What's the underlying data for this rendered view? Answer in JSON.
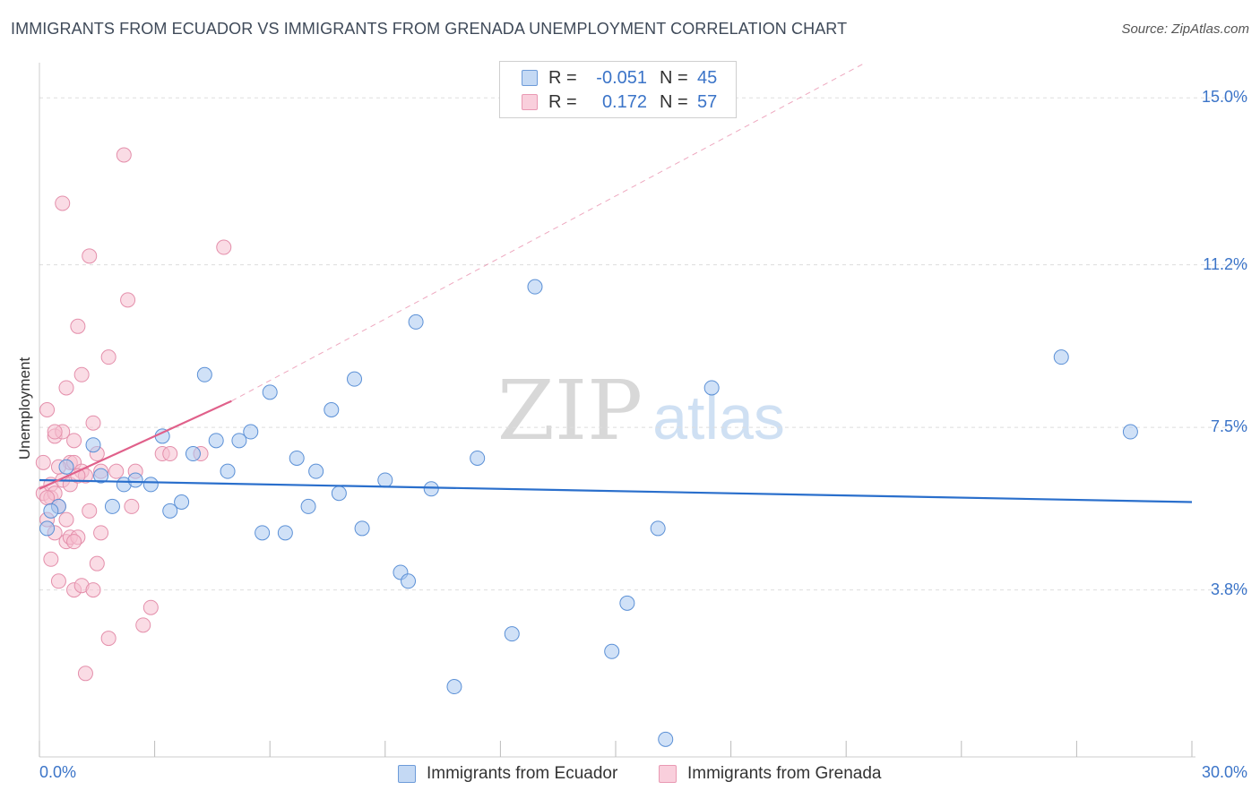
{
  "title": "IMMIGRANTS FROM ECUADOR VS IMMIGRANTS FROM GRENADA UNEMPLOYMENT CORRELATION CHART",
  "source": "Source: ZipAtlas.com",
  "watermark": {
    "zip": "ZIP",
    "atlas": "atlas"
  },
  "legend": {
    "r_label": "R =",
    "n_label": "N =",
    "ecuador": {
      "r": "-0.051",
      "n": "45"
    },
    "grenada": {
      "r": "0.172",
      "n": "57"
    }
  },
  "colors": {
    "ecuador_fill": "#a9c8f0",
    "ecuador_stroke": "#5b90d6",
    "ecuador_line": "#2a6fcc",
    "grenada_fill": "#f6bfd0",
    "grenada_stroke": "#e48fab",
    "grenada_line": "#e0608a",
    "tick_text": "#3b74c8",
    "grid": "#dddddd"
  },
  "chart_data": {
    "type": "scatter",
    "title": "IMMIGRANTS FROM ECUADOR VS IMMIGRANTS FROM GRENADA UNEMPLOYMENT CORRELATION CHART",
    "xlabel": "",
    "ylabel": "Unemployment",
    "xlim": [
      0,
      30
    ],
    "ylim": [
      0,
      15.8
    ],
    "x_tick_labels": {
      "min": "0.0%",
      "max": "30.0%"
    },
    "y_ticks": [
      {
        "value": 3.8,
        "label": "3.8%"
      },
      {
        "value": 7.5,
        "label": "7.5%"
      },
      {
        "value": 11.2,
        "label": "11.2%"
      },
      {
        "value": 15.0,
        "label": "15.0%"
      }
    ],
    "grid": true,
    "legend_position": "top-center",
    "series": [
      {
        "name": "Immigrants from Ecuador",
        "points": [
          [
            0.2,
            5.2
          ],
          [
            0.5,
            5.7
          ],
          [
            0.7,
            6.6
          ],
          [
            1.4,
            7.1
          ],
          [
            1.6,
            6.4
          ],
          [
            1.9,
            5.7
          ],
          [
            2.2,
            6.2
          ],
          [
            2.5,
            6.3
          ],
          [
            2.9,
            6.2
          ],
          [
            3.2,
            7.3
          ],
          [
            3.4,
            5.6
          ],
          [
            3.7,
            5.8
          ],
          [
            4.0,
            6.9
          ],
          [
            4.3,
            8.7
          ],
          [
            4.6,
            7.2
          ],
          [
            4.9,
            6.5
          ],
          [
            5.2,
            7.2
          ],
          [
            5.5,
            7.4
          ],
          [
            5.8,
            5.1
          ],
          [
            6.0,
            8.3
          ],
          [
            6.4,
            5.1
          ],
          [
            6.7,
            6.8
          ],
          [
            7.0,
            5.7
          ],
          [
            7.2,
            6.5
          ],
          [
            7.6,
            7.9
          ],
          [
            7.8,
            6.0
          ],
          [
            8.2,
            8.6
          ],
          [
            8.4,
            5.2
          ],
          [
            9.0,
            6.3
          ],
          [
            9.4,
            4.2
          ],
          [
            9.6,
            4.0
          ],
          [
            9.8,
            9.9
          ],
          [
            10.2,
            6.1
          ],
          [
            10.8,
            1.6
          ],
          [
            11.4,
            6.8
          ],
          [
            12.3,
            2.8
          ],
          [
            12.9,
            10.7
          ],
          [
            14.9,
            2.4
          ],
          [
            15.3,
            3.5
          ],
          [
            16.1,
            5.2
          ],
          [
            16.3,
            0.4
          ],
          [
            17.5,
            8.4
          ],
          [
            26.6,
            9.1
          ],
          [
            28.4,
            7.4
          ],
          [
            0.3,
            5.6
          ]
        ]
      },
      {
        "name": "Immigrants from Grenada",
        "points": [
          [
            0.1,
            6.0
          ],
          [
            0.1,
            6.7
          ],
          [
            0.2,
            5.4
          ],
          [
            0.2,
            7.9
          ],
          [
            0.3,
            6.2
          ],
          [
            0.3,
            4.5
          ],
          [
            0.3,
            5.9
          ],
          [
            0.4,
            7.3
          ],
          [
            0.4,
            6.0
          ],
          [
            0.4,
            5.1
          ],
          [
            0.5,
            4.0
          ],
          [
            0.5,
            5.7
          ],
          [
            0.6,
            12.6
          ],
          [
            0.6,
            6.3
          ],
          [
            0.6,
            7.4
          ],
          [
            0.7,
            8.4
          ],
          [
            0.7,
            5.4
          ],
          [
            0.7,
            4.9
          ],
          [
            0.8,
            6.7
          ],
          [
            0.8,
            6.2
          ],
          [
            0.8,
            5.0
          ],
          [
            0.9,
            7.2
          ],
          [
            0.9,
            6.7
          ],
          [
            0.9,
            3.8
          ],
          [
            1.0,
            9.8
          ],
          [
            1.0,
            5.0
          ],
          [
            1.1,
            8.7
          ],
          [
            1.1,
            6.5
          ],
          [
            1.1,
            3.9
          ],
          [
            1.2,
            6.4
          ],
          [
            1.2,
            1.9
          ],
          [
            1.3,
            11.4
          ],
          [
            1.3,
            5.6
          ],
          [
            1.4,
            7.6
          ],
          [
            1.4,
            3.8
          ],
          [
            1.5,
            6.9
          ],
          [
            1.5,
            4.4
          ],
          [
            1.6,
            5.1
          ],
          [
            1.6,
            6.5
          ],
          [
            1.8,
            9.1
          ],
          [
            1.8,
            2.7
          ],
          [
            2.0,
            6.5
          ],
          [
            2.2,
            13.7
          ],
          [
            2.3,
            10.4
          ],
          [
            2.4,
            5.7
          ],
          [
            2.5,
            6.5
          ],
          [
            2.7,
            3.0
          ],
          [
            2.9,
            3.4
          ],
          [
            3.2,
            6.9
          ],
          [
            3.4,
            6.9
          ],
          [
            4.2,
            6.9
          ],
          [
            4.8,
            11.6
          ],
          [
            0.2,
            5.9
          ],
          [
            0.5,
            6.6
          ],
          [
            0.9,
            4.9
          ],
          [
            1.0,
            6.4
          ],
          [
            0.4,
            7.4
          ]
        ]
      }
    ],
    "trend_lines": [
      {
        "series": "Immigrants from Ecuador",
        "x": [
          0,
          30
        ],
        "y": [
          6.3,
          5.8
        ]
      },
      {
        "series": "Immigrants from Grenada",
        "x": [
          0,
          5.0
        ],
        "y": [
          6.1,
          8.1
        ]
      },
      {
        "series": "Immigrants from Grenada (extended)",
        "x": [
          5.0,
          21.5
        ],
        "y": [
          8.1,
          15.8
        ],
        "dashed": true
      }
    ]
  }
}
